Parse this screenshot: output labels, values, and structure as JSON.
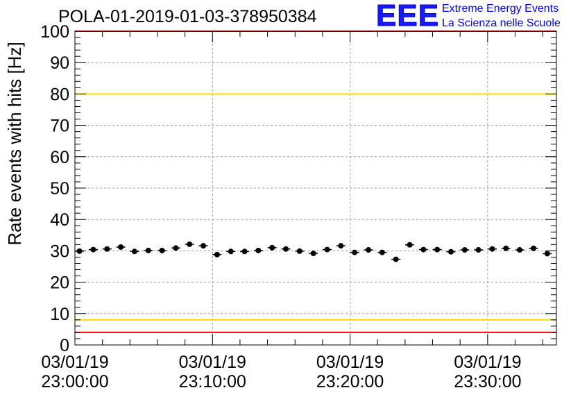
{
  "title": "POLA-01-2019-01-03-378950384",
  "logo": {
    "mark": "EEE",
    "line1": "Extreme Energy Events",
    "line2": "La Scienza nelle Scuole"
  },
  "colors": {
    "red_limit": "#ff0000",
    "yellow_limit": "#ffd700",
    "points": "#000000"
  },
  "chart_data": {
    "type": "scatter",
    "title": "POLA-01-2019-01-03-378950384",
    "ylabel": "Rate events with hits [Hz]",
    "xlabel": "",
    "ylim": [
      0,
      100
    ],
    "yticks": [
      0,
      10,
      20,
      30,
      40,
      50,
      60,
      70,
      80,
      90,
      100
    ],
    "xlim": [
      "23:00:00",
      "23:35:00"
    ],
    "xticks": [
      {
        "date": "03/01/19",
        "time": "23:00:00"
      },
      {
        "date": "03/01/19",
        "time": "23:10:00"
      },
      {
        "date": "03/01/19",
        "time": "23:20:00"
      },
      {
        "date": "03/01/19",
        "time": "23:30:00"
      }
    ],
    "grid": true,
    "reference_lines": [
      {
        "color": "red",
        "y": 100
      },
      {
        "color": "yellow",
        "y": 80
      },
      {
        "color": "yellow",
        "y": 8
      },
      {
        "color": "red",
        "y": 4
      }
    ],
    "series": [
      {
        "x": [
          "23:00:20",
          "23:01:20",
          "23:02:20",
          "23:03:20",
          "23:04:20",
          "23:05:20",
          "23:06:20",
          "23:07:20",
          "23:08:20",
          "23:09:20",
          "23:10:20",
          "23:11:20",
          "23:12:20",
          "23:13:20",
          "23:14:20",
          "23:15:20",
          "23:16:20",
          "23:17:20",
          "23:18:20",
          "23:19:20",
          "23:20:20",
          "23:21:20",
          "23:22:20",
          "23:23:20",
          "23:24:20",
          "23:25:20",
          "23:26:20",
          "23:27:20",
          "23:28:20",
          "23:29:20",
          "23:30:20",
          "23:31:20",
          "23:32:20",
          "23:33:20",
          "23:34:20"
        ],
        "y": [
          29.9,
          30.4,
          30.6,
          31.2,
          29.8,
          30.1,
          30.1,
          30.9,
          32.1,
          31.6,
          28.8,
          29.8,
          29.8,
          30.1,
          31.0,
          30.6,
          29.9,
          29.2,
          30.4,
          31.6,
          29.5,
          30.3,
          29.5,
          27.3,
          31.9,
          30.4,
          30.4,
          29.7,
          30.3,
          30.3,
          30.6,
          30.8,
          30.3,
          30.8,
          29.1
        ],
        "x_error_minutes": 0.33
      }
    ]
  }
}
